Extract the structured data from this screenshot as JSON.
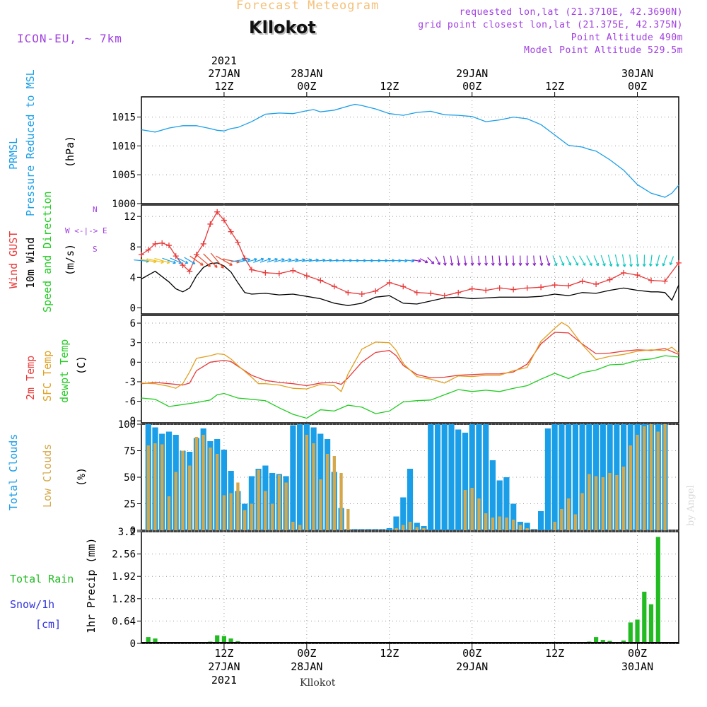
{
  "header": {
    "product": "Forecast Meteogram",
    "place": "Kllokot",
    "model": "ICON-EU, ~ 7km",
    "requested": "requested lon,lat (21.3710E, 42.3690N)",
    "gridpoint": "grid point closest lon,lat (21.375E, 42.375N)",
    "point_alt": "Point Altitude 490m",
    "model_alt": "Model Point Altitude 529.5m",
    "footer_place": "Kllokot",
    "credit": "by Angel"
  },
  "colors": {
    "pressure": "#1a9ee8",
    "gust": "#e83a3a",
    "wind": "#000000",
    "t2m": "#e83a3a",
    "sfc": "#e0a020",
    "dewpt": "#22cc22",
    "total_clouds": "#1a9ee8",
    "low_clouds": "#d4a84a",
    "rain": "#22bb22",
    "snow": "#3333dd",
    "purple": "#a040e0",
    "header_orange": "#f4c078"
  },
  "chart_data": [
    {
      "type": "line",
      "panel": "pressure",
      "ylabel": "(hPa)",
      "side_labels": [
        "PRMSL",
        "Pressure Reduced to MSL"
      ],
      "ylim": [
        1000,
        1018.5
      ],
      "yticks": [
        1000,
        1005,
        1010,
        1015
      ],
      "x_hours": [
        0,
        78
      ],
      "series": [
        {
          "name": "PRMSL",
          "x": [
            0,
            2,
            4,
            6,
            8,
            10,
            11,
            12,
            13,
            14,
            16,
            18,
            20,
            22,
            24,
            25,
            26,
            28,
            30,
            31,
            32,
            34,
            36,
            38,
            40,
            42,
            44,
            46,
            48,
            50,
            52,
            54,
            56,
            58,
            60,
            62,
            64,
            65,
            66,
            68,
            70,
            72,
            74,
            76,
            77,
            78
          ],
          "values": [
            1012.8,
            1012.4,
            1013.1,
            1013.5,
            1013.5,
            1013.0,
            1012.7,
            1012.6,
            1013.0,
            1013.2,
            1014.2,
            1015.5,
            1015.7,
            1015.6,
            1016.1,
            1016.3,
            1015.9,
            1016.2,
            1016.9,
            1017.2,
            1017.0,
            1016.4,
            1015.6,
            1015.3,
            1015.8,
            1016.0,
            1015.4,
            1015.3,
            1015.1,
            1014.2,
            1014.5,
            1015.0,
            1014.7,
            1013.7,
            1011.9,
            1010.1,
            1009.8,
            1009.4,
            1009.1,
            1007.6,
            1005.8,
            1003.3,
            1001.8,
            1001.1,
            1001.8,
            1003.2
          ]
        }
      ]
    },
    {
      "type": "line",
      "panel": "wind",
      "ylabel": "(m/s)",
      "side_labels": [
        "Wind GUST",
        "10m Wind",
        "Speed and Direction"
      ],
      "compass": [
        "N",
        "W <-|-> E",
        "S"
      ],
      "ylim": [
        -0.8,
        13.5
      ],
      "yticks": [
        0,
        4,
        8,
        12
      ],
      "series": [
        {
          "name": "Wind GUST",
          "x": [
            0,
            1,
            2,
            3,
            4,
            5,
            6,
            7,
            8,
            9,
            10,
            11,
            12,
            13,
            14,
            15,
            16,
            18,
            20,
            22,
            24,
            26,
            28,
            30,
            32,
            34,
            36,
            38,
            40,
            42,
            44,
            46,
            48,
            50,
            52,
            54,
            56,
            58,
            60,
            62,
            64,
            66,
            68,
            70,
            72,
            74,
            76,
            78
          ],
          "values": [
            7.0,
            7.6,
            8.4,
            8.5,
            8.2,
            6.8,
            5.6,
            4.8,
            7.0,
            8.4,
            11.0,
            12.6,
            11.5,
            10.0,
            8.6,
            6.5,
            5.0,
            4.6,
            4.5,
            4.9,
            4.2,
            3.6,
            2.8,
            2.0,
            1.8,
            2.2,
            3.3,
            2.8,
            2.0,
            1.9,
            1.6,
            2.0,
            2.5,
            2.3,
            2.6,
            2.4,
            2.6,
            2.7,
            3.0,
            2.9,
            3.5,
            3.1,
            3.7,
            4.6,
            4.3,
            3.6,
            3.5,
            5.9
          ]
        },
        {
          "name": "10m Wind",
          "x": [
            0,
            1,
            2,
            3,
            4,
            5,
            6,
            7,
            8,
            9,
            10,
            11,
            12,
            13,
            14,
            15,
            16,
            18,
            20,
            22,
            24,
            26,
            28,
            30,
            32,
            34,
            36,
            38,
            40,
            42,
            44,
            46,
            48,
            50,
            52,
            54,
            56,
            58,
            60,
            62,
            64,
            66,
            68,
            70,
            72,
            74,
            75,
            76,
            77,
            78
          ],
          "values": [
            3.8,
            4.3,
            4.8,
            4.1,
            3.4,
            2.5,
            2.1,
            2.6,
            4.2,
            5.3,
            5.8,
            5.9,
            5.5,
            4.7,
            3.3,
            2.0,
            1.8,
            1.9,
            1.7,
            1.8,
            1.5,
            1.2,
            0.6,
            0.3,
            0.6,
            1.4,
            1.6,
            0.6,
            0.5,
            0.9,
            1.3,
            1.4,
            1.2,
            1.3,
            1.4,
            1.4,
            1.4,
            1.5,
            1.8,
            1.6,
            2.0,
            1.9,
            2.3,
            2.6,
            2.3,
            2.1,
            2.1,
            2.0,
            1.0,
            3.0
          ]
        },
        {
          "name": "wind direction (deg, to)",
          "x": [
            0,
            4,
            8,
            11,
            14,
            17,
            20,
            24,
            28,
            32,
            36,
            40,
            44,
            48,
            52,
            56,
            60,
            64,
            68,
            72,
            76
          ],
          "values": [
            95,
            110,
            125,
            140,
            80,
            70,
            75,
            80,
            85,
            90,
            90,
            100,
            170,
            175,
            175,
            180,
            160,
            150,
            165,
            175,
            200
          ]
        }
      ]
    },
    {
      "type": "line",
      "panel": "temperature",
      "ylabel": "(C)",
      "side_labels": [
        "2m Temp",
        "SFC Temp",
        "dewpt Temp"
      ],
      "ylim": [
        -9.3,
        7.2
      ],
      "yticks": [
        -9,
        -6,
        -3,
        0,
        3,
        6
      ],
      "series": [
        {
          "name": "2m Temp",
          "x": [
            0,
            2,
            4,
            6,
            7,
            8,
            10,
            12,
            13,
            14,
            16,
            18,
            20,
            22,
            24,
            26,
            28,
            29,
            30,
            32,
            34,
            36,
            37,
            38,
            40,
            42,
            44,
            46,
            48,
            50,
            52,
            54,
            56,
            58,
            60,
            62,
            64,
            66,
            68,
            70,
            72,
            74,
            76,
            78
          ],
          "values": [
            -3.3,
            -3.1,
            -3.3,
            -3.5,
            -3.2,
            -1.3,
            0.0,
            0.3,
            0.1,
            -0.6,
            -2.0,
            -2.8,
            -3.1,
            -3.3,
            -3.6,
            -3.2,
            -3.1,
            -3.4,
            -2.4,
            0.0,
            1.5,
            1.8,
            1.0,
            -0.5,
            -1.9,
            -2.4,
            -2.3,
            -2.0,
            -1.9,
            -1.8,
            -1.8,
            -1.5,
            -0.3,
            2.8,
            4.6,
            4.5,
            2.8,
            1.3,
            1.4,
            1.7,
            1.9,
            1.8,
            2.1,
            1.2
          ]
        },
        {
          "name": "SFC Temp",
          "x": [
            0,
            2,
            4,
            5,
            6,
            7,
            8,
            10,
            11,
            12,
            13,
            14,
            16,
            17,
            18,
            20,
            22,
            24,
            26,
            28,
            29,
            30,
            32,
            34,
            36,
            37,
            38,
            40,
            42,
            44,
            46,
            48,
            50,
            52,
            54,
            56,
            58,
            60,
            61,
            62,
            64,
            66,
            68,
            70,
            72,
            74,
            76,
            77,
            78
          ],
          "values": [
            -3.2,
            -3.3,
            -3.7,
            -4.0,
            -3.3,
            -1.5,
            0.6,
            1.0,
            1.3,
            1.2,
            0.5,
            -0.5,
            -2.3,
            -3.3,
            -3.3,
            -3.5,
            -4.0,
            -4.1,
            -3.4,
            -3.6,
            -4.5,
            -1.8,
            2.0,
            3.1,
            3.0,
            1.8,
            -0.2,
            -2.2,
            -2.6,
            -3.2,
            -2.1,
            -2.2,
            -2.0,
            -2.0,
            -1.3,
            -0.8,
            3.2,
            5.2,
            6.1,
            5.5,
            2.7,
            0.4,
            0.9,
            1.2,
            1.7,
            1.9,
            1.8,
            2.3,
            1.4
          ]
        },
        {
          "name": "dewpt Temp",
          "x": [
            0,
            2,
            4,
            6,
            8,
            10,
            11,
            12,
            14,
            16,
            18,
            20,
            22,
            24,
            26,
            28,
            30,
            32,
            34,
            36,
            38,
            40,
            42,
            44,
            46,
            48,
            50,
            52,
            54,
            56,
            58,
            60,
            62,
            64,
            66,
            68,
            70,
            72,
            74,
            76,
            78
          ],
          "values": [
            -5.5,
            -5.7,
            -6.8,
            -6.5,
            -6.2,
            -5.8,
            -5.0,
            -4.8,
            -5.5,
            -5.7,
            -5.9,
            -7.0,
            -8.0,
            -8.6,
            -7.3,
            -7.5,
            -6.6,
            -6.9,
            -7.9,
            -7.5,
            -6.1,
            -5.9,
            -5.8,
            -5.0,
            -4.2,
            -4.5,
            -4.3,
            -4.5,
            -4.0,
            -3.6,
            -2.6,
            -1.7,
            -2.5,
            -1.6,
            -1.2,
            -0.4,
            -0.3,
            0.3,
            0.5,
            1.0,
            0.8
          ]
        }
      ]
    },
    {
      "type": "bar",
      "panel": "clouds",
      "ylabel": "(%)",
      "side_labels": [
        "Total Clouds",
        "Low Clouds"
      ],
      "ylim": [
        0,
        100
      ],
      "yticks": [
        0,
        25,
        50,
        75,
        100
      ],
      "x_start_hour": 1,
      "series": [
        {
          "name": "Total Clouds",
          "values": [
            100,
            97,
            91,
            93,
            90,
            75,
            74,
            87,
            96,
            84,
            86,
            76,
            56,
            37,
            25,
            51,
            58,
            61,
            54,
            53,
            51,
            99,
            100,
            100,
            97,
            91,
            86,
            55,
            21,
            0,
            0,
            0,
            0,
            0,
            0,
            2,
            13,
            31,
            58,
            7,
            4,
            100,
            100,
            100,
            100,
            95,
            92,
            100,
            100,
            100,
            66,
            47,
            50,
            25,
            8,
            7,
            0,
            18,
            96,
            100,
            100,
            100,
            100,
            100,
            100,
            100,
            100,
            100,
            100,
            100,
            100,
            100,
            100,
            100,
            100,
            100
          ]
        },
        {
          "name": "Low Clouds",
          "values": [
            80,
            82,
            81,
            32,
            55,
            75,
            61,
            88,
            90,
            78,
            72,
            33,
            35,
            45,
            19,
            25,
            57,
            37,
            25,
            52,
            45,
            8,
            5,
            90,
            82,
            48,
            72,
            70,
            54,
            20,
            0,
            0,
            0,
            0,
            0,
            0,
            2,
            5,
            8,
            3,
            2,
            0,
            0,
            0,
            0,
            0,
            38,
            40,
            30,
            16,
            12,
            13,
            12,
            10,
            5,
            2,
            0,
            0,
            0,
            8,
            20,
            30,
            15,
            35,
            53,
            51,
            50,
            54,
            52,
            60,
            80,
            90,
            98,
            100,
            93,
            100
          ]
        }
      ]
    },
    {
      "type": "bar",
      "panel": "precip",
      "ylabel": "1hr Precip (mm)",
      "side_labels": [
        "Total  Rain",
        "Snow/1h",
        "[cm]"
      ],
      "ylim": [
        0,
        3.2
      ],
      "yticks": [
        0,
        0.64,
        1.28,
        1.92,
        2.56,
        3.2
      ],
      "x_start_hour": 1,
      "series": [
        {
          "name": "Total Rain",
          "values": [
            0.18,
            0.14,
            0.03,
            0,
            0,
            0,
            0,
            0,
            0.03,
            0.05,
            0.23,
            0.21,
            0.14,
            0.06,
            0.03,
            0,
            0,
            0,
            0,
            0,
            0,
            0,
            0,
            0,
            0,
            0,
            0,
            0,
            0,
            0,
            0,
            0,
            0,
            0,
            0,
            0,
            0,
            0,
            0,
            0,
            0,
            0,
            0,
            0,
            0,
            0,
            0,
            0,
            0,
            0,
            0,
            0,
            0,
            0,
            0,
            0,
            0,
            0,
            0,
            0,
            0,
            0,
            0,
            0,
            0.05,
            0.18,
            0.1,
            0.07,
            0.02,
            0.08,
            0.6,
            0.68,
            1.48,
            1.12,
            3.05
          ]
        }
      ]
    }
  ],
  "x_axis": {
    "top_year": "2021",
    "top_labels": [
      {
        "hour": 12,
        "l1": "27JAN",
        "l2": "12Z"
      },
      {
        "hour": 24,
        "l1": "28JAN",
        "l2": "00Z"
      },
      {
        "hour": 36,
        "l1": "",
        "l2": "12Z"
      },
      {
        "hour": 48,
        "l1": "29JAN",
        "l2": "00Z"
      },
      {
        "hour": 60,
        "l1": "",
        "l2": "12Z"
      },
      {
        "hour": 72,
        "l1": "30JAN",
        "l2": "00Z"
      }
    ],
    "bottom_labels": [
      {
        "hour": 12,
        "l1": "12Z",
        "l2": "27JAN"
      },
      {
        "hour": 24,
        "l1": "00Z",
        "l2": "28JAN"
      },
      {
        "hour": 36,
        "l1": "12Z",
        "l2": ""
      },
      {
        "hour": 48,
        "l1": "00Z",
        "l2": "29JAN"
      },
      {
        "hour": 60,
        "l1": "12Z",
        "l2": ""
      },
      {
        "hour": 72,
        "l1": "00Z",
        "l2": "30JAN"
      }
    ],
    "bottom_year": "2021"
  }
}
